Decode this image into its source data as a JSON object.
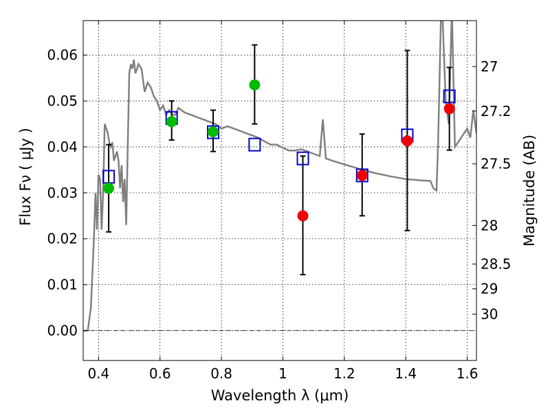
{
  "chart_data": {
    "type": "scatter",
    "title": "",
    "xlabel": "Wavelength  λ (μm)",
    "ylabel": "Flux  Fν  ( μJy )",
    "y2label": "Magnitude (AB)",
    "xlim": [
      0.35,
      1.63
    ],
    "ylim": [
      -0.0065,
      0.0675
    ],
    "x_ticks": [
      0.4,
      0.6,
      0.8,
      1.0,
      1.2,
      1.4,
      1.6
    ],
    "x_tick_labels": [
      "0.4",
      "0.6",
      "0.8",
      "1",
      "1.2",
      "1.4",
      "1.6"
    ],
    "y_ticks": [
      0.0,
      0.01,
      0.02,
      0.03,
      0.04,
      0.05,
      0.06
    ],
    "y_tick_labels": [
      "0.00",
      "0.01",
      "0.02",
      "0.03",
      "0.04",
      "0.05",
      "0.06"
    ],
    "y2_ticks": [
      {
        "label": "27",
        "flux": 0.0575
      },
      {
        "label": "27.2",
        "flux": 0.0478
      },
      {
        "label": "27.5",
        "flux": 0.0363
      },
      {
        "label": "28",
        "flux": 0.0229
      },
      {
        "label": "28.5",
        "flux": 0.0145
      },
      {
        "label": "29",
        "flux": 0.0091
      },
      {
        "label": "30",
        "flux": 0.0036
      }
    ],
    "grid": true,
    "colors": {
      "model": "#808080",
      "model_box": "#0000cc",
      "detection": "#00bb00",
      "upper": "#ee0000",
      "errorbar": "#000000"
    },
    "series": [
      {
        "style": "line",
        "x": [
          0.35,
          0.365,
          0.375,
          0.385,
          0.39,
          0.395,
          0.4,
          0.405,
          0.41,
          0.415,
          0.42,
          0.425,
          0.43,
          0.435,
          0.44,
          0.445,
          0.45,
          0.455,
          0.46,
          0.465,
          0.47,
          0.475,
          0.48,
          0.485,
          0.49,
          0.495,
          0.5,
          0.505,
          0.51,
          0.515,
          0.52,
          0.53,
          0.54,
          0.55,
          0.56,
          0.57,
          0.58,
          0.59,
          0.6,
          0.61,
          0.62,
          0.63,
          0.64,
          0.65,
          0.66,
          0.68,
          0.7,
          0.72,
          0.74,
          0.76,
          0.78,
          0.8,
          0.82,
          0.84,
          0.86,
          0.88,
          0.9,
          0.92,
          0.94,
          0.96,
          0.98,
          1.0,
          1.02,
          1.04,
          1.06,
          1.08,
          1.1,
          1.12,
          1.13,
          1.14,
          1.16,
          1.2,
          1.25,
          1.3,
          1.35,
          1.4,
          1.45,
          1.48,
          1.49,
          1.5,
          1.505,
          1.51,
          1.515,
          1.52,
          1.53,
          1.54,
          1.55,
          1.56,
          1.57,
          1.58,
          1.59,
          1.6,
          1.61,
          1.62,
          1.63
        ],
        "y": [
          0.0,
          0.0,
          0.005,
          0.02,
          0.03,
          0.022,
          0.034,
          0.033,
          0.022,
          0.03,
          0.045,
          0.044,
          0.043,
          0.041,
          0.04,
          0.041,
          0.037,
          0.038,
          0.039,
          0.037,
          0.031,
          0.036,
          0.028,
          0.033,
          0.023,
          0.04,
          0.056,
          0.058,
          0.057,
          0.059,
          0.056,
          0.058,
          0.057,
          0.052,
          0.054,
          0.053,
          0.051,
          0.05,
          0.048,
          0.049,
          0.047,
          0.048,
          0.047,
          0.047,
          0.0485,
          0.0475,
          0.047,
          0.0465,
          0.046,
          0.0455,
          0.045,
          0.044,
          0.0445,
          0.044,
          0.0435,
          0.043,
          0.0425,
          0.042,
          0.0412,
          0.0405,
          0.0405,
          0.0398,
          0.0392,
          0.0392,
          0.0395,
          0.039,
          0.0385,
          0.038,
          0.046,
          0.0375,
          0.037,
          0.0362,
          0.0352,
          0.0343,
          0.0336,
          0.033,
          0.0327,
          0.0326,
          0.031,
          0.0305,
          0.04,
          0.055,
          0.07,
          0.068,
          0.05,
          0.045,
          0.07,
          0.04,
          0.041,
          0.042,
          0.043,
          0.044,
          0.042,
          0.048,
          0.043
        ]
      },
      {
        "style": "open-square",
        "x": [
          0.433,
          0.638,
          0.773,
          0.908,
          1.065,
          1.258,
          1.405,
          1.542
        ],
        "y": [
          0.0335,
          0.0463,
          0.0432,
          0.0405,
          0.0375,
          0.0338,
          0.0425,
          0.051
        ]
      },
      {
        "style": "filled-circle-green",
        "x": [
          0.433,
          0.638,
          0.773,
          0.908
        ],
        "y": [
          0.031,
          0.0455,
          0.0433,
          0.0535
        ],
        "yerr_low": [
          0.0215,
          0.0415,
          0.039,
          0.045
        ],
        "yerr_high": [
          0.0405,
          0.05,
          0.048,
          0.0622
        ]
      },
      {
        "style": "filled-circle-red",
        "x": [
          1.065,
          1.258,
          1.405,
          1.542
        ],
        "y": [
          0.025,
          0.0338,
          0.0413,
          0.0483
        ],
        "yerr_low": [
          0.0122,
          0.025,
          0.0218,
          0.0393
        ],
        "yerr_high": [
          0.038,
          0.0428,
          0.061,
          0.0573
        ]
      }
    ]
  }
}
